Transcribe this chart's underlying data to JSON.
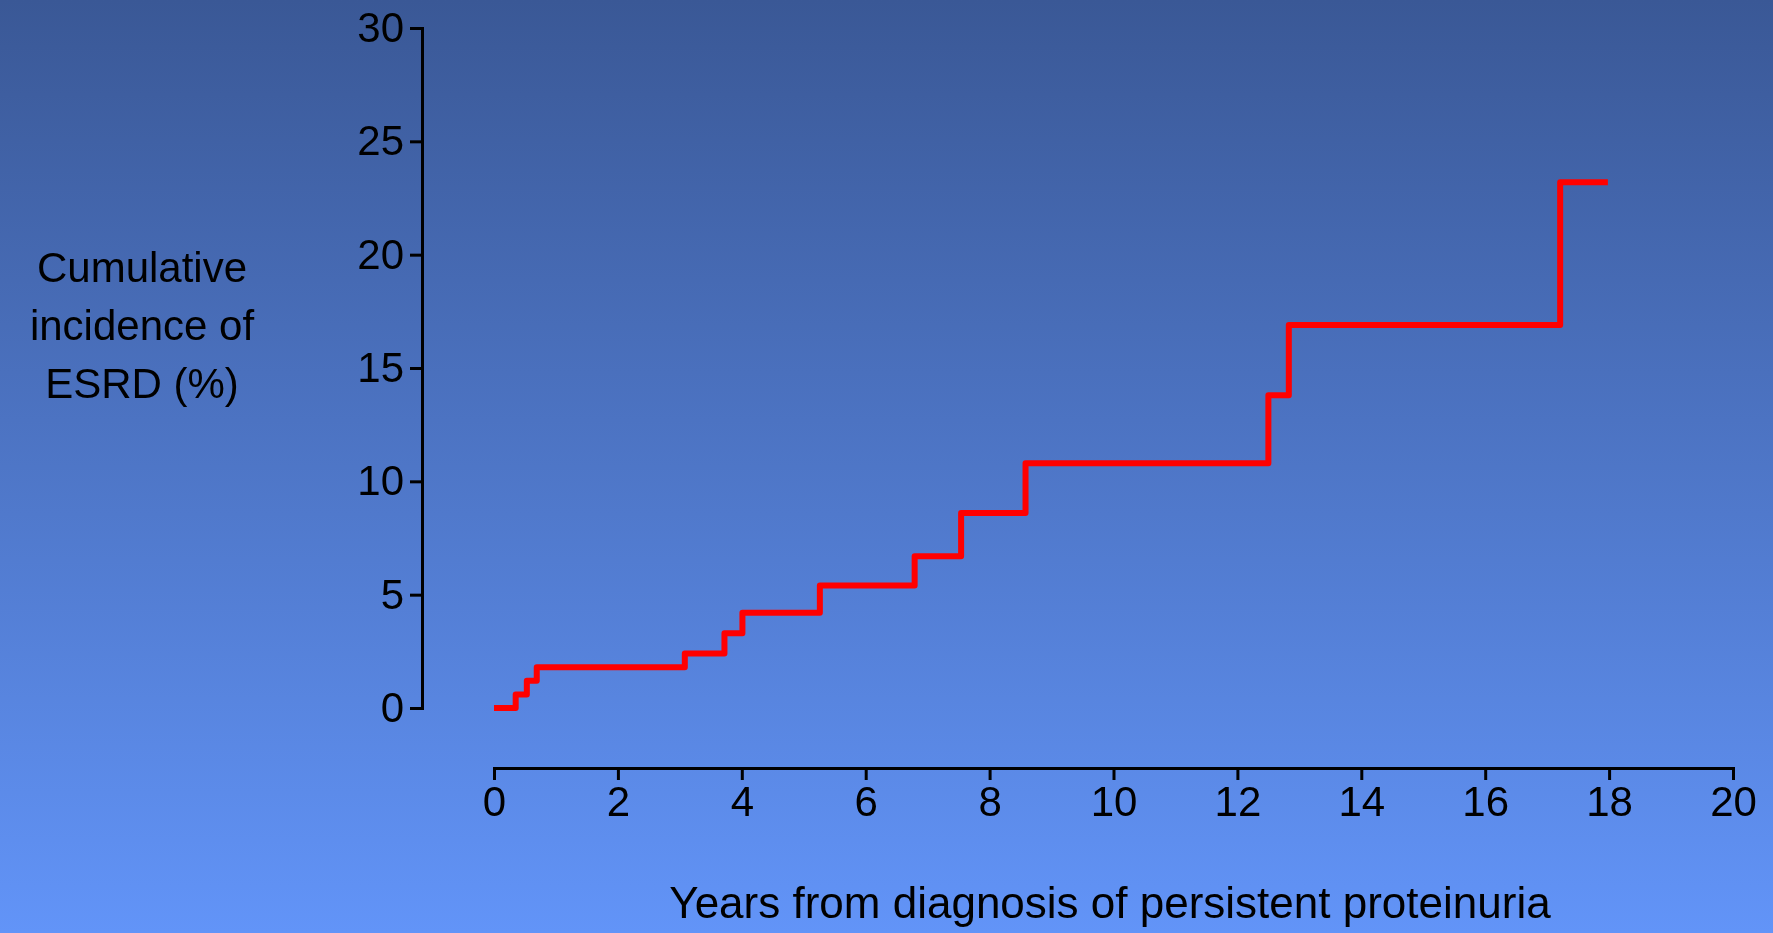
{
  "chart_data": {
    "type": "step",
    "xlabel": "Years from diagnosis of persistent proteinuria",
    "ylabel": "Cumulative incidence of ESRD (%)",
    "x": [
      0,
      0.35,
      0.53,
      0.69,
      3.08,
      3.72,
      4.01,
      5.26,
      6.79,
      7.54,
      8.58,
      12.5,
      12.83,
      17.21,
      17.98
    ],
    "series": [
      {
        "color": "#ff0000",
        "values": [
          0,
          0.6,
          1.2,
          1.8,
          2.4,
          3.3,
          4.2,
          5.4,
          6.7,
          8.6,
          10.8,
          13.8,
          16.9,
          23.2,
          23.2
        ]
      }
    ],
    "xlim": [
      0,
      20
    ],
    "xticks": [
      0,
      2,
      4,
      6,
      8,
      10,
      12,
      14,
      16,
      18,
      20
    ],
    "ylim": [
      0,
      30
    ],
    "yticks": [
      0,
      5,
      10,
      15,
      20,
      25,
      30
    ],
    "grid": false,
    "marker": "none",
    "line_style": "solid"
  }
}
